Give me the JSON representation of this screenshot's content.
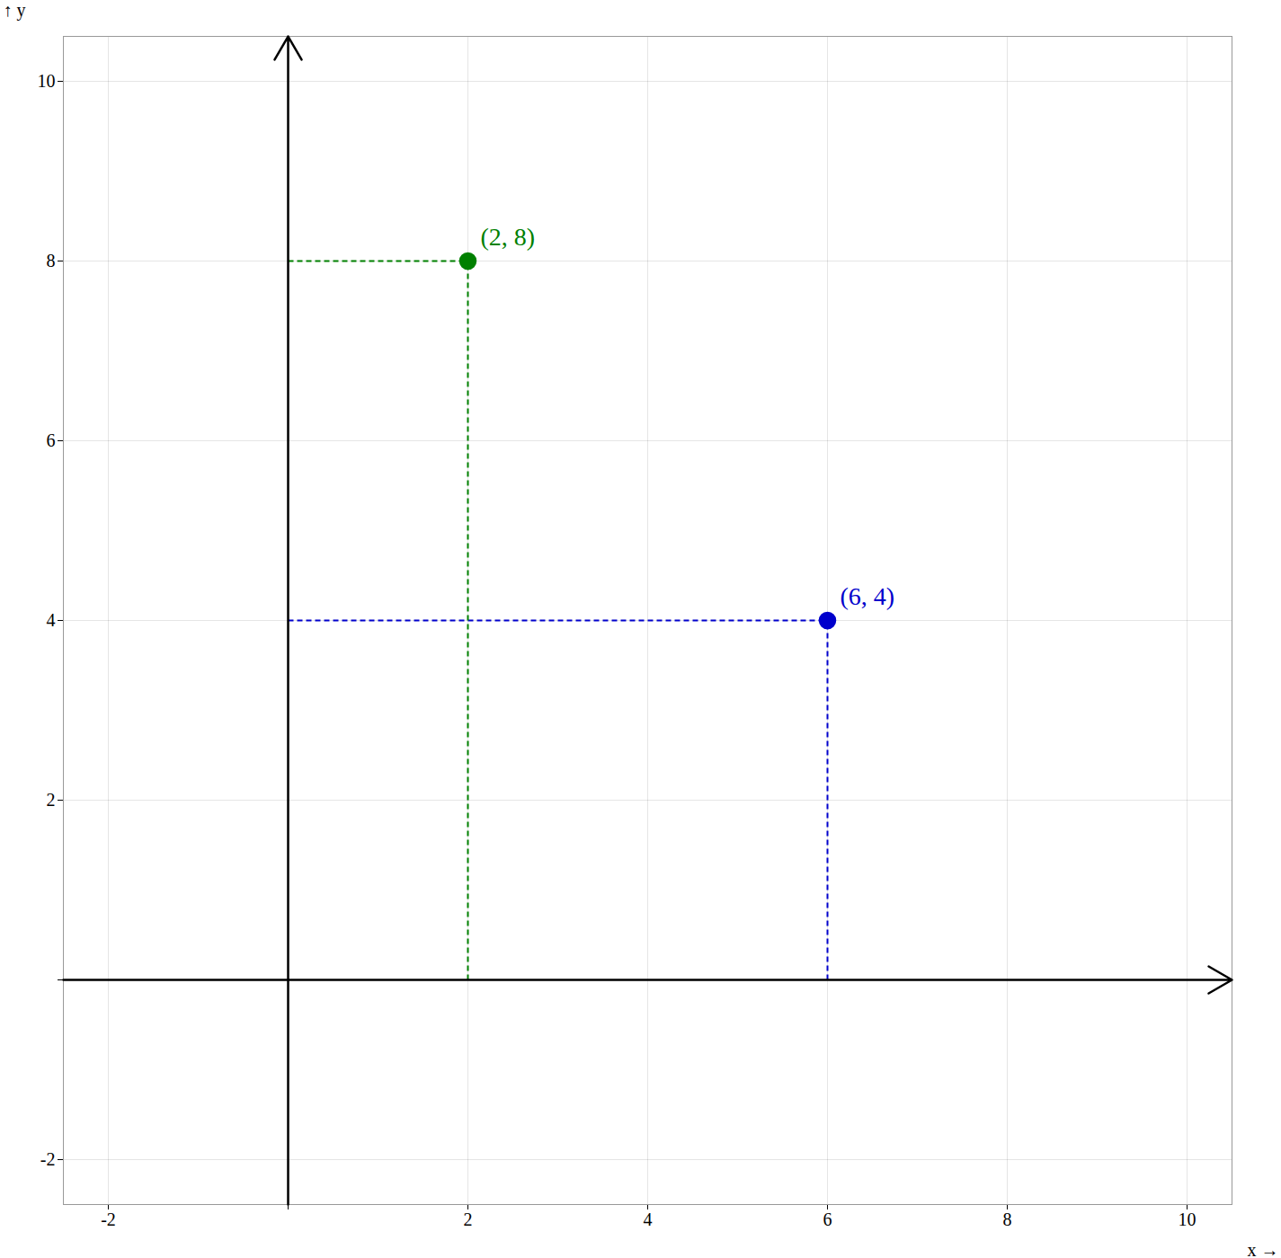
{
  "chart_data": {
    "type": "scatter",
    "xlabel": "x",
    "ylabel": "y",
    "x": [
      2,
      6
    ],
    "values": [
      8,
      4
    ],
    "colors": [
      "#008000",
      "#0000cc"
    ],
    "marker": "o",
    "line_style": "dashed",
    "annotations": [
      {
        "x": 2,
        "y": 8,
        "text": "(2, 8)"
      },
      {
        "x": 6,
        "y": 4,
        "text": "(6, 4)"
      }
    ],
    "xlim": [
      -2.5,
      10.5
    ],
    "ylim": [
      -2.5,
      10.5
    ],
    "xticks": [
      -2,
      {
        "value": 0,
        "label": null
      },
      2,
      4,
      6,
      8,
      10
    ],
    "yticks": [
      -2,
      {
        "value": 0,
        "label": null
      },
      2,
      4,
      6,
      8,
      10
    ],
    "grid": true
  }
}
